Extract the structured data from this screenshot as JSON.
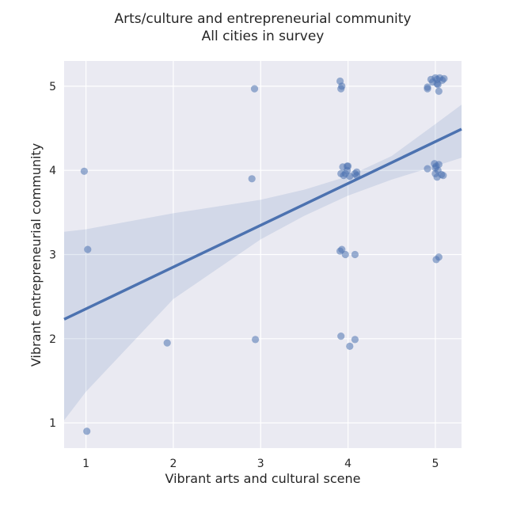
{
  "chart_data": {
    "type": "scatter",
    "title": "Arts/culture and entrepreneurial community",
    "subtitle": "All cities in survey",
    "xlabel": "Vibrant arts and cultural scene",
    "ylabel": "Vibrant entrepreneurial community",
    "xlim": [
      0.75,
      5.3
    ],
    "ylim": [
      0.7,
      5.3
    ],
    "xticks": [
      "1",
      "2",
      "3",
      "4",
      "5"
    ],
    "yticks": [
      "1",
      "2",
      "3",
      "4",
      "5"
    ],
    "grid": true,
    "background": "#eaeaf2",
    "grid_color": "#ffffff",
    "point_color": "#4c72b0",
    "line_color": "#4c72b0",
    "band_color": "#4c72b0",
    "regression_line": {
      "x": [
        0.75,
        5.3
      ],
      "y": [
        2.23,
        4.49
      ]
    },
    "confidence_band": {
      "x": [
        0.75,
        1.0,
        2.0,
        3.0,
        3.5,
        4.0,
        4.5,
        5.0,
        5.3
      ],
      "lower": [
        1.03,
        1.37,
        2.47,
        3.18,
        3.46,
        3.7,
        3.89,
        4.05,
        4.15
      ],
      "upper": [
        3.27,
        3.3,
        3.49,
        3.65,
        3.77,
        3.93,
        4.17,
        4.55,
        4.78
      ]
    },
    "points": {
      "x": [
        0.98,
        1.01,
        1.02,
        1.93,
        2.9,
        2.93,
        2.94,
        3.91,
        3.92,
        3.93,
        3.94,
        3.99,
        3.92,
        3.95,
        3.97,
        3.99,
        4.0,
        4.02,
        4.08,
        4.1,
        4.1,
        3.91,
        3.93,
        3.97,
        4.08,
        3.92,
        4.02,
        4.08,
        4.91,
        4.91,
        4.95,
        4.97,
        5.0,
        5.02,
        5.03,
        5.05,
        5.08,
        5.1,
        5.04,
        5.02,
        4.91,
        4.99,
        5.01,
        5.02,
        5.0,
        5.03,
        5.04,
        5.07,
        5.09,
        5.0,
        5.01,
        5.04
      ],
      "y": [
        3.99,
        0.9,
        3.06,
        1.95,
        3.9,
        4.97,
        1.99,
        5.06,
        4.97,
        5.0,
        4.04,
        4.05,
        3.96,
        3.94,
        3.96,
        4.0,
        4.05,
        3.93,
        3.96,
        3.94,
        3.98,
        3.04,
        3.06,
        3.0,
        3.0,
        2.03,
        1.91,
        1.99,
        4.97,
        4.99,
        5.08,
        5.05,
        5.1,
        5.08,
        5.02,
        5.1,
        5.07,
        5.09,
        4.94,
        5.03,
        4.02,
        4.08,
        4.05,
        3.92,
        3.96,
        4.0,
        4.07,
        3.95,
        3.94,
        4.03,
        2.94,
        2.97
      ]
    }
  }
}
